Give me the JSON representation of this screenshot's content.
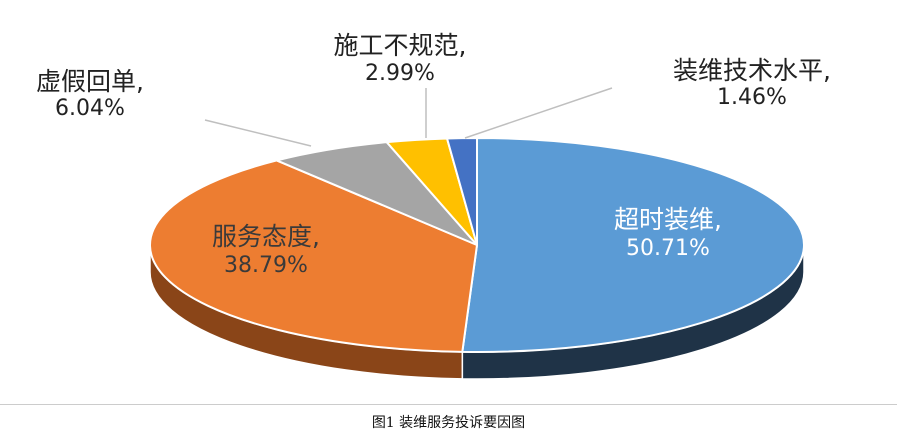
{
  "chart_data": {
    "type": "pie",
    "style": "3d",
    "slices": [
      {
        "label": "超时装维,",
        "value_text": "50.71%",
        "value": 50.71,
        "color": "#5B9BD5",
        "side_color": "#1F3347",
        "text_color": "#ffffff"
      },
      {
        "label": "服务态度,",
        "value_text": "38.79%",
        "value": 38.79,
        "color": "#ED7D31",
        "side_color": "#8A4518",
        "text_color": "#3a3a3a"
      },
      {
        "label": "虚假回单,",
        "value_text": "6.04%",
        "value": 6.04,
        "color": "#A5A5A5",
        "side_color": "#5F5F5F",
        "text_color": "#222222"
      },
      {
        "label": "施工不规范,",
        "value_text": "2.99%",
        "value": 2.99,
        "color": "#FFC000",
        "side_color": "#8F6B00",
        "text_color": "#222222"
      },
      {
        "label": "装维技术水平,",
        "value_text": "1.46%",
        "value": 1.46,
        "color": "#4472C4",
        "side_color": "#223A66",
        "text_color": "#222222"
      }
    ]
  },
  "caption": "图1   装维服务投诉要因图"
}
